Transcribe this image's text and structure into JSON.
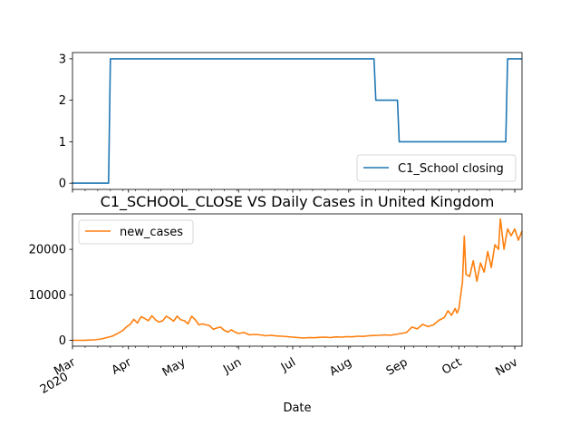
{
  "chart_data": [
    {
      "type": "line",
      "title": "",
      "ylim": [
        -0.15,
        3.15
      ],
      "yticks": [
        0,
        1,
        2,
        3
      ],
      "legend_position": "lower right",
      "series": [
        {
          "name": "C1_School closing",
          "color": "#1f77b4",
          "points": [
            [
              "2020-03-01",
              0
            ],
            [
              "2020-03-21",
              0
            ],
            [
              "2020-03-22",
              3
            ],
            [
              "2020-08-15",
              3
            ],
            [
              "2020-08-16",
              2
            ],
            [
              "2020-08-28",
              2
            ],
            [
              "2020-08-29",
              1
            ],
            [
              "2020-10-27",
              1
            ],
            [
              "2020-10-28",
              3
            ],
            [
              "2020-11-05",
              3
            ]
          ]
        }
      ]
    },
    {
      "type": "line",
      "title": "C1_SCHOOL_CLOSE VS Daily Cases in United Kingdom",
      "xlabel": "Date",
      "ylim": [
        -1300,
        27800
      ],
      "yticks": [
        0,
        10000,
        20000
      ],
      "ytick_labels": [
        "0",
        "10000",
        "20000"
      ],
      "legend_position": "upper left",
      "series": [
        {
          "name": "new_cases",
          "color": "#ff7f0e",
          "points": [
            [
              "2020-03-01",
              0
            ],
            [
              "2020-03-08",
              20
            ],
            [
              "2020-03-13",
              100
            ],
            [
              "2020-03-17",
              300
            ],
            [
              "2020-03-20",
              600
            ],
            [
              "2020-03-23",
              900
            ],
            [
              "2020-03-26",
              1500
            ],
            [
              "2020-03-29",
              2200
            ],
            [
              "2020-03-31",
              3000
            ],
            [
              "2020-04-02",
              3500
            ],
            [
              "2020-04-04",
              4600
            ],
            [
              "2020-04-06",
              3800
            ],
            [
              "2020-04-08",
              5200
            ],
            [
              "2020-04-10",
              4800
            ],
            [
              "2020-04-12",
              4300
            ],
            [
              "2020-04-14",
              5400
            ],
            [
              "2020-04-16",
              4500
            ],
            [
              "2020-04-18",
              4000
            ],
            [
              "2020-04-20",
              4300
            ],
            [
              "2020-04-22",
              5300
            ],
            [
              "2020-04-24",
              4800
            ],
            [
              "2020-04-26",
              4200
            ],
            [
              "2020-04-28",
              5300
            ],
            [
              "2020-04-30",
              4500
            ],
            [
              "2020-05-02",
              4300
            ],
            [
              "2020-05-04",
              3600
            ],
            [
              "2020-05-06",
              5300
            ],
            [
              "2020-05-08",
              4500
            ],
            [
              "2020-05-10",
              3400
            ],
            [
              "2020-05-12",
              3600
            ],
            [
              "2020-05-14",
              3400
            ],
            [
              "2020-05-16",
              3200
            ],
            [
              "2020-05-18",
              2400
            ],
            [
              "2020-05-20",
              2700
            ],
            [
              "2020-05-22",
              2900
            ],
            [
              "2020-05-24",
              2200
            ],
            [
              "2020-05-26",
              1800
            ],
            [
              "2020-05-28",
              2300
            ],
            [
              "2020-05-30",
              1800
            ],
            [
              "2020-06-01",
              1500
            ],
            [
              "2020-06-04",
              1700
            ],
            [
              "2020-06-07",
              1200
            ],
            [
              "2020-06-10",
              1300
            ],
            [
              "2020-06-13",
              1200
            ],
            [
              "2020-06-16",
              1000
            ],
            [
              "2020-06-19",
              1100
            ],
            [
              "2020-06-22",
              950
            ],
            [
              "2020-06-25",
              900
            ],
            [
              "2020-06-28",
              800
            ],
            [
              "2020-07-01",
              700
            ],
            [
              "2020-07-04",
              600
            ],
            [
              "2020-07-07",
              500
            ],
            [
              "2020-07-10",
              600
            ],
            [
              "2020-07-13",
              550
            ],
            [
              "2020-07-16",
              650
            ],
            [
              "2020-07-19",
              700
            ],
            [
              "2020-07-22",
              600
            ],
            [
              "2020-07-25",
              750
            ],
            [
              "2020-07-28",
              700
            ],
            [
              "2020-07-31",
              800
            ],
            [
              "2020-08-03",
              750
            ],
            [
              "2020-08-06",
              900
            ],
            [
              "2020-08-09",
              850
            ],
            [
              "2020-08-12",
              1000
            ],
            [
              "2020-08-15",
              1050
            ],
            [
              "2020-08-18",
              1100
            ],
            [
              "2020-08-21",
              1200
            ],
            [
              "2020-08-24",
              1100
            ],
            [
              "2020-08-27",
              1300
            ],
            [
              "2020-08-30",
              1500
            ],
            [
              "2020-09-02",
              1700
            ],
            [
              "2020-09-05",
              2900
            ],
            [
              "2020-09-08",
              2500
            ],
            [
              "2020-09-11",
              3500
            ],
            [
              "2020-09-14",
              3000
            ],
            [
              "2020-09-17",
              3400
            ],
            [
              "2020-09-20",
              4400
            ],
            [
              "2020-09-23",
              5000
            ],
            [
              "2020-09-25",
              6500
            ],
            [
              "2020-09-27",
              5500
            ],
            [
              "2020-09-29",
              7000
            ],
            [
              "2020-09-30",
              6000
            ],
            [
              "2020-10-01",
              6900
            ],
            [
              "2020-10-03",
              12800
            ],
            [
              "2020-10-04",
              22900
            ],
            [
              "2020-10-05",
              14500
            ],
            [
              "2020-10-07",
              14000
            ],
            [
              "2020-10-09",
              17500
            ],
            [
              "2020-10-11",
              13000
            ],
            [
              "2020-10-13",
              17000
            ],
            [
              "2020-10-15",
              15000
            ],
            [
              "2020-10-17",
              19500
            ],
            [
              "2020-10-19",
              16000
            ],
            [
              "2020-10-21",
              21000
            ],
            [
              "2020-10-23",
              20000
            ],
            [
              "2020-10-24",
              26700
            ],
            [
              "2020-10-26",
              20000
            ],
            [
              "2020-10-28",
              24500
            ],
            [
              "2020-10-30",
              23000
            ],
            [
              "2020-11-01",
              24500
            ],
            [
              "2020-11-03",
              22000
            ],
            [
              "2020-11-05",
              24000
            ]
          ]
        }
      ]
    }
  ],
  "x_axis": {
    "range": [
      "2020-03-01",
      "2020-11-05"
    ],
    "ticks": [
      {
        "date": "2020-03-01",
        "label": "Mar",
        "label2": "2020"
      },
      {
        "date": "2020-04-01",
        "label": "Apr",
        "label2": ""
      },
      {
        "date": "2020-05-01",
        "label": "May",
        "label2": ""
      },
      {
        "date": "2020-06-01",
        "label": "Jun",
        "label2": ""
      },
      {
        "date": "2020-07-01",
        "label": "Jul",
        "label2": ""
      },
      {
        "date": "2020-08-01",
        "label": "Aug",
        "label2": ""
      },
      {
        "date": "2020-09-01",
        "label": "Sep",
        "label2": ""
      },
      {
        "date": "2020-10-01",
        "label": "Oct",
        "label2": ""
      },
      {
        "date": "2020-11-01",
        "label": "Nov",
        "label2": ""
      }
    ]
  }
}
